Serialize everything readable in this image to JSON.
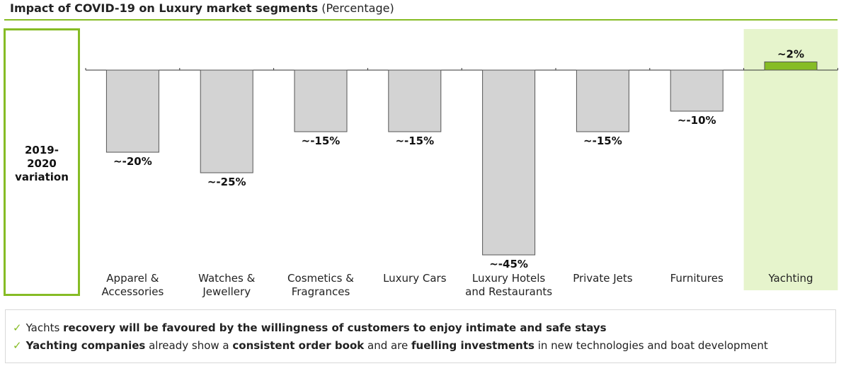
{
  "title": {
    "bold": "Impact of COVID-19 on Luxury market segments",
    "normal": "(Percentage)"
  },
  "period_label": [
    "2019-",
    "2020",
    "variation"
  ],
  "colors": {
    "accent": "#86bc25",
    "bar_negative": "#d3d3d3",
    "bar_positive": "#86bc25",
    "highlight_bg": "#e6f4cc"
  },
  "chart_data": {
    "type": "bar",
    "categories": [
      [
        "Apparel &",
        "Accessories"
      ],
      [
        "Watches &",
        "Jewellery"
      ],
      [
        "Cosmetics &",
        "Fragrances"
      ],
      [
        "Luxury Cars"
      ],
      [
        "Luxury Hotels",
        "and Restaurants"
      ],
      [
        "Private Jets"
      ],
      [
        "Furnitures"
      ],
      [
        "Yachting"
      ]
    ],
    "values": [
      -20,
      -25,
      -15,
      -15,
      -45,
      -15,
      -10,
      2
    ],
    "data_labels": [
      "~-20%",
      "~-25%",
      "~-15%",
      "~-15%",
      "~-45%",
      "~-15%",
      "~-10%",
      "~2%"
    ],
    "highlight": "Yachting",
    "grid": false
  },
  "notes": [
    {
      "icon": "check-icon",
      "parts": [
        {
          "t": "Yachts ",
          "b": false
        },
        {
          "t": "recovery will be favoured by the willingness of customers to enjoy intimate and safe stays",
          "b": true
        }
      ]
    },
    {
      "icon": "check-icon",
      "parts": [
        {
          "t": "Yachting companies",
          "b": true
        },
        {
          "t": " already show a ",
          "b": false
        },
        {
          "t": "consistent order book",
          "b": true
        },
        {
          "t": " and are ",
          "b": false
        },
        {
          "t": "fuelling investments",
          "b": true
        },
        {
          "t": " in new technologies and boat development",
          "b": false
        }
      ]
    }
  ]
}
